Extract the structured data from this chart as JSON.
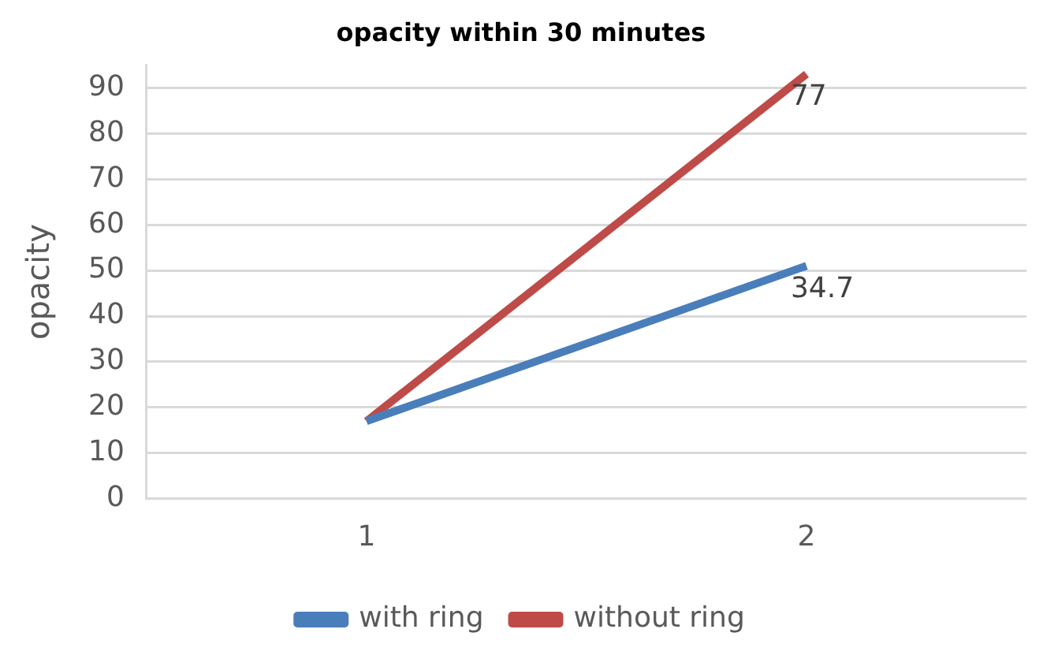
{
  "chart_data": {
    "type": "line",
    "title": "opacity within 30 minutes",
    "ylabel": "opacity",
    "categories": [
      "1",
      "2"
    ],
    "series": [
      {
        "name": "with ring",
        "color": "#4a7ebb",
        "values": [
          17,
          51
        ]
      },
      {
        "name": "without ring",
        "color": "#be4b48",
        "values": [
          17,
          93
        ]
      }
    ],
    "ylim": [
      0,
      95
    ],
    "yticks": [
      0,
      10,
      20,
      30,
      40,
      50,
      60,
      70,
      80,
      90
    ],
    "grid": "y",
    "legend": "bottom",
    "marker": "none",
    "line_style": "solid",
    "annotations": [
      {
        "text": "77",
        "x": "2",
        "y": 93
      },
      {
        "text": "34.7",
        "x": "2",
        "y": 51
      }
    ]
  }
}
